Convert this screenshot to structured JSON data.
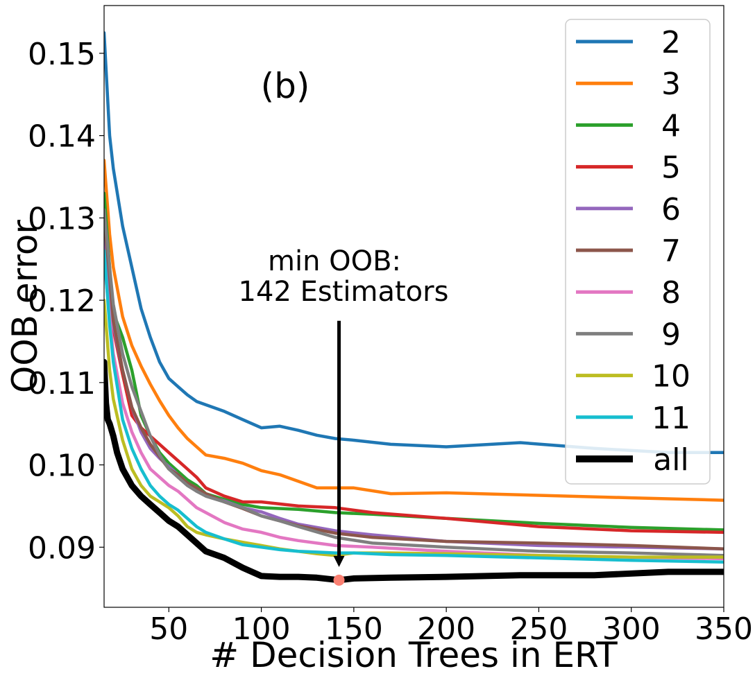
{
  "chart_data": {
    "type": "line",
    "panel_label": "(b)",
    "xlabel": "# Decision Trees in ERT",
    "ylabel": "OOB error",
    "xlim": [
      15,
      350
    ],
    "ylim": [
      0.0827,
      0.1558
    ],
    "xticks": [
      50,
      100,
      150,
      200,
      250,
      300,
      350
    ],
    "xtick_labels": [
      "50",
      "100",
      "150",
      "200",
      "250",
      "300",
      "350"
    ],
    "yticks": [
      0.09,
      0.1,
      0.11,
      0.12,
      0.13,
      0.14,
      0.15
    ],
    "ytick_labels": [
      "0.09",
      "0.10",
      "0.11",
      "0.12",
      "0.13",
      "0.14",
      "0.15"
    ],
    "grid": false,
    "legend_position": "upper-right",
    "annotation": {
      "line1": "min OOB:",
      "line2": "142 Estimators",
      "arrow_from": [
        142,
        0.1175
      ],
      "arrow_to": [
        142,
        0.0876
      ],
      "marker": [
        142,
        0.086
      ],
      "marker_color": "#fa8072"
    },
    "series": [
      {
        "name": "2",
        "color": "#1f77b4",
        "x": [
          15,
          18,
          20,
          25,
          30,
          35,
          40,
          45,
          50,
          55,
          60,
          65,
          70,
          80,
          90,
          100,
          110,
          120,
          130,
          140,
          150,
          170,
          200,
          240,
          280,
          320,
          350
        ],
        "y": [
          0.1525,
          0.14,
          0.136,
          0.129,
          0.124,
          0.119,
          0.1155,
          0.1125,
          0.1105,
          0.1095,
          0.1085,
          0.1077,
          0.1073,
          0.1065,
          0.1055,
          0.1045,
          0.1047,
          0.1042,
          0.1036,
          0.1032,
          0.103,
          0.1025,
          0.1022,
          0.1027,
          0.102,
          0.1015,
          0.1015
        ]
      },
      {
        "name": "3",
        "color": "#ff7f0e",
        "x": [
          15,
          18,
          20,
          25,
          30,
          35,
          40,
          45,
          50,
          55,
          60,
          65,
          70,
          80,
          90,
          100,
          110,
          120,
          130,
          150,
          170,
          200,
          250,
          300,
          350
        ],
        "y": [
          0.137,
          0.128,
          0.124,
          0.118,
          0.1145,
          0.112,
          0.1098,
          0.1078,
          0.106,
          0.1045,
          0.1032,
          0.1022,
          0.1012,
          0.1008,
          0.1002,
          0.0993,
          0.0988,
          0.098,
          0.0972,
          0.0972,
          0.0965,
          0.0966,
          0.0963,
          0.096,
          0.0957
        ]
      },
      {
        "name": "4",
        "color": "#2ca02c",
        "x": [
          15,
          18,
          20,
          25,
          30,
          35,
          40,
          45,
          50,
          55,
          60,
          65,
          70,
          80,
          90,
          100,
          120,
          140,
          160,
          200,
          250,
          300,
          350
        ],
        "y": [
          0.133,
          0.124,
          0.1185,
          0.1155,
          0.1115,
          0.106,
          0.1035,
          0.1015,
          0.1002,
          0.0992,
          0.0982,
          0.0975,
          0.0965,
          0.0958,
          0.0952,
          0.0948,
          0.0946,
          0.0942,
          0.094,
          0.0935,
          0.0929,
          0.0924,
          0.0921
        ]
      },
      {
        "name": "5",
        "color": "#d62728",
        "x": [
          15,
          18,
          20,
          25,
          30,
          35,
          40,
          45,
          50,
          55,
          60,
          65,
          70,
          80,
          90,
          100,
          120,
          140,
          160,
          200,
          250,
          300,
          350
        ],
        "y": [
          0.127,
          0.121,
          0.1165,
          0.111,
          0.106,
          0.1045,
          0.1035,
          0.1025,
          0.1015,
          0.1005,
          0.0995,
          0.0985,
          0.0972,
          0.0962,
          0.0955,
          0.0955,
          0.095,
          0.0948,
          0.0942,
          0.0935,
          0.0925,
          0.092,
          0.0918
        ]
      },
      {
        "name": "6",
        "color": "#9467bd",
        "x": [
          15,
          18,
          20,
          25,
          30,
          35,
          40,
          45,
          50,
          55,
          60,
          65,
          70,
          80,
          90,
          100,
          110,
          120,
          140,
          160,
          200,
          250,
          300,
          350
        ],
        "y": [
          0.128,
          0.121,
          0.117,
          0.1115,
          0.107,
          0.104,
          0.102,
          0.1008,
          0.0998,
          0.0988,
          0.0978,
          0.0968,
          0.0963,
          0.0956,
          0.0948,
          0.0943,
          0.0935,
          0.0928,
          0.092,
          0.0915,
          0.0907,
          0.0902,
          0.09,
          0.0898
        ]
      },
      {
        "name": "7",
        "color": "#8c564b",
        "x": [
          15,
          18,
          20,
          25,
          30,
          35,
          40,
          45,
          50,
          55,
          60,
          65,
          70,
          80,
          90,
          100,
          110,
          120,
          140,
          160,
          200,
          250,
          300,
          350
        ],
        "y": [
          0.13,
          0.123,
          0.1175,
          0.1115,
          0.107,
          0.1045,
          0.1025,
          0.101,
          0.0995,
          0.0988,
          0.0978,
          0.0972,
          0.0965,
          0.0955,
          0.0947,
          0.0938,
          0.0932,
          0.0926,
          0.0917,
          0.0912,
          0.0907,
          0.0905,
          0.0902,
          0.0898
        ]
      },
      {
        "name": "8",
        "color": "#e377c2",
        "x": [
          15,
          18,
          20,
          25,
          30,
          35,
          40,
          45,
          50,
          55,
          60,
          65,
          70,
          80,
          90,
          100,
          110,
          120,
          130,
          140,
          160,
          200,
          250,
          300,
          350
        ],
        "y": [
          0.125,
          0.118,
          0.1135,
          0.1075,
          0.104,
          0.1015,
          0.0995,
          0.0985,
          0.0975,
          0.0968,
          0.0958,
          0.0948,
          0.0942,
          0.093,
          0.0922,
          0.0918,
          0.0912,
          0.0908,
          0.0905,
          0.0902,
          0.09,
          0.0895,
          0.089,
          0.0888,
          0.0886
        ]
      },
      {
        "name": "9",
        "color": "#7f7f7f",
        "x": [
          15,
          18,
          20,
          25,
          30,
          35,
          40,
          45,
          50,
          55,
          60,
          65,
          70,
          80,
          90,
          100,
          110,
          120,
          140,
          160,
          200,
          250,
          300,
          350
        ],
        "y": [
          0.131,
          0.124,
          0.1195,
          0.1135,
          0.1095,
          0.1065,
          0.1035,
          0.1012,
          0.0995,
          0.0985,
          0.0975,
          0.0968,
          0.0962,
          0.0955,
          0.0948,
          0.0938,
          0.0932,
          0.0925,
          0.0912,
          0.0905,
          0.09,
          0.0895,
          0.0893,
          0.089
        ]
      },
      {
        "name": "10",
        "color": "#bcbd22",
        "x": [
          15,
          18,
          20,
          25,
          30,
          35,
          40,
          45,
          50,
          55,
          60,
          65,
          70,
          80,
          90,
          100,
          110,
          120,
          130,
          140,
          150,
          170,
          200,
          250,
          300,
          350
        ],
        "y": [
          0.12,
          0.1115,
          0.108,
          0.103,
          0.0995,
          0.0975,
          0.0962,
          0.0955,
          0.0948,
          0.0938,
          0.0925,
          0.0918,
          0.0915,
          0.091,
          0.0906,
          0.0902,
          0.0898,
          0.0895,
          0.0892,
          0.089,
          0.0893,
          0.0893,
          0.0892,
          0.089,
          0.0888,
          0.0888
        ]
      },
      {
        "name": "11",
        "color": "#17becf",
        "x": [
          15,
          18,
          20,
          25,
          30,
          35,
          40,
          45,
          50,
          55,
          60,
          65,
          70,
          80,
          90,
          100,
          110,
          120,
          130,
          140,
          150,
          170,
          200,
          250,
          300,
          350
        ],
        "y": [
          0.126,
          0.117,
          0.1125,
          0.1055,
          0.102,
          0.0995,
          0.0975,
          0.0962,
          0.0952,
          0.0945,
          0.0935,
          0.0925,
          0.0918,
          0.091,
          0.0903,
          0.09,
          0.0897,
          0.0895,
          0.0894,
          0.0893,
          0.0893,
          0.0891,
          0.089,
          0.0887,
          0.0884,
          0.0882
        ]
      },
      {
        "name": "all",
        "color": "#000000",
        "thick": true,
        "x": [
          15,
          16,
          17,
          18,
          20,
          22,
          25,
          30,
          35,
          40,
          45,
          50,
          55,
          60,
          65,
          70,
          80,
          90,
          100,
          110,
          120,
          130,
          142,
          150,
          170,
          200,
          240,
          280,
          320,
          350
        ],
        "y": [
          0.1125,
          0.1075,
          0.1055,
          0.105,
          0.1035,
          0.1015,
          0.0995,
          0.0975,
          0.0962,
          0.0952,
          0.0942,
          0.0932,
          0.0925,
          0.0915,
          0.0905,
          0.0895,
          0.0887,
          0.0875,
          0.0865,
          0.0864,
          0.0864,
          0.0863,
          0.086,
          0.0862,
          0.0863,
          0.0864,
          0.0866,
          0.0866,
          0.087,
          0.087
        ]
      }
    ]
  }
}
